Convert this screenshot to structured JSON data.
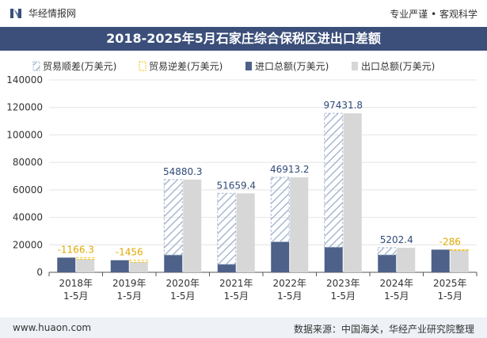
{
  "header": {
    "brand": "华经情报网",
    "tagline": "专业严谨 • 客观科学"
  },
  "footer": {
    "url": "www.huaon.com",
    "source": "数据来源：中国海关，华经产业研究院整理"
  },
  "colors": {
    "title_bg": "#3b4f7a",
    "surplus": "#2e4a77",
    "deficit": "#f5c21b",
    "import": "#4d6189",
    "export": "#d7d7d7",
    "hatch": "#a9b9d1"
  },
  "chart_data": {
    "type": "bar",
    "title": "2018-2025年5月石家庄综合保税区进出口差额",
    "categories": [
      "2018年\n1-5月",
      "2019年\n1-5月",
      "2020年\n1-5月",
      "2021年\n1-5月",
      "2022年\n1-5月",
      "2023年\n1-5月",
      "2024年\n1-5月",
      "2025年\n1-5月"
    ],
    "series": [
      {
        "name": "贸易顺差(万美元)",
        "values": [
          null,
          null,
          54880.3,
          51659.4,
          46913.2,
          97431.8,
          5202.4,
          null
        ]
      },
      {
        "name": "贸易逆差(万美元)",
        "values": [
          -1166.3,
          -1456,
          null,
          null,
          null,
          null,
          null,
          -286
        ]
      },
      {
        "name": "进口总额(万美元)",
        "values": [
          10700,
          8800,
          12600,
          5800,
          22200,
          18300,
          12700,
          16500
        ]
      },
      {
        "name": "出口总额(万美元)",
        "values": [
          9533.7,
          7344,
          67480.3,
          57459.4,
          69113.2,
          115731.8,
          17902.4,
          16214
        ]
      }
    ],
    "data_labels": [
      "-1166.3",
      "-1456",
      "54880.3",
      "51659.4",
      "46913.2",
      "97431.8",
      "5202.4",
      "-286"
    ],
    "ylim": [
      0,
      140000
    ],
    "yticks": [
      0,
      20000,
      40000,
      60000,
      80000,
      100000,
      120000,
      140000
    ],
    "legend_position": "top"
  }
}
